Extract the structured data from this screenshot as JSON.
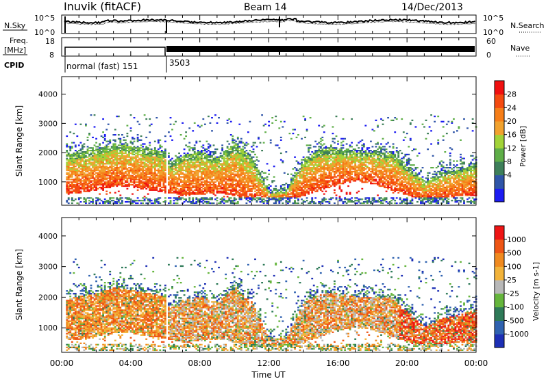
{
  "header": {
    "station": "Inuvik (fitACF)",
    "beam": "Beam 14",
    "date": "14/Dec/2013"
  },
  "colors": {
    "power_scale": [
      "#1c1cf2",
      "#2f55a8",
      "#3e7f5a",
      "#5fae48",
      "#a2d338",
      "#f1a22e",
      "#f67e18",
      "#f44a10",
      "#f01010"
    ],
    "velocity_scale": [
      "#1d2fb5",
      "#2f62b0",
      "#2e7a58",
      "#65b53c",
      "#b8b8b8",
      "#f2b33a",
      "#f08a1f",
      "#ee5515",
      "#ee1515"
    ]
  },
  "chart_data": [
    {
      "type": "line",
      "name": "nsky-nsearch",
      "ylabel_left": "N.Sky",
      "ylabel_right": "N.Search",
      "left_ticks": [
        "10^5",
        "10^0"
      ],
      "right_ticks": [
        "10^5",
        "10^0"
      ],
      "xlim": [
        0,
        24
      ]
    },
    {
      "type": "line",
      "name": "freq-nave",
      "ylabel_left": "Freq.",
      "ylabel_left_unit": "[MHz]",
      "ylabel_right": "Nave",
      "left_ticks": [
        "18",
        "8"
      ],
      "right_ticks": [
        "60",
        "0"
      ],
      "xlim": [
        0,
        24
      ]
    },
    {
      "type": "table",
      "name": "cpid",
      "label": "CPID",
      "segments": [
        {
          "start": 0,
          "end": 6.1,
          "text": "normal (fast) 151"
        },
        {
          "start": 6.1,
          "end": 24,
          "text": "3503"
        }
      ]
    },
    {
      "type": "heatmap",
      "name": "power",
      "ylabel": "Slant Range [km]",
      "yticks": [
        1000,
        2000,
        3000,
        4000
      ],
      "ylim": [
        200,
        4600
      ],
      "xlim": [
        0,
        24
      ],
      "colorbar_label": "Power [dB]",
      "colorbar_ticks": [
        "28",
        "24",
        "20",
        "16",
        "12",
        "8",
        "4"
      ]
    },
    {
      "type": "heatmap",
      "name": "velocity",
      "ylabel": "Slant Range [km]",
      "yticks": [
        1000,
        2000,
        3000,
        4000
      ],
      "ylim": [
        200,
        4600
      ],
      "xlim": [
        0,
        24
      ],
      "xlabel": "Time UT",
      "xticks": [
        "00:00",
        "04:00",
        "08:00",
        "12:00",
        "16:00",
        "20:00",
        "00:00"
      ],
      "colorbar_label": "Velocity [m s-1]",
      "colorbar_ticks": [
        "1000",
        "500",
        "100",
        "25",
        "-25",
        "-100",
        "-500",
        "-1000"
      ]
    }
  ]
}
